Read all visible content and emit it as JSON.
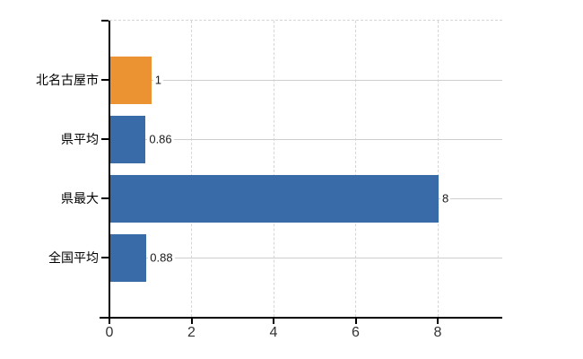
{
  "chart_data": {
    "type": "bar",
    "orientation": "horizontal",
    "title": "",
    "xlabel": "",
    "ylabel": "",
    "categories": [
      "北名古屋市",
      "県平均",
      "県最大",
      "全国平均"
    ],
    "values": [
      1,
      0.86,
      8,
      0.88
    ],
    "value_labels": [
      "1",
      "0.86",
      "8",
      "0.88"
    ],
    "x_ticks": [
      "0",
      "2",
      "4",
      "6",
      "8"
    ],
    "x_tick_values": [
      0,
      2,
      4,
      6,
      8
    ],
    "xlim": [
      0,
      9.57
    ],
    "grid": "on",
    "legend": "none",
    "highlight_index": 0,
    "bar_colors": [
      "#EB9232",
      "#3A6BA9",
      "#3A6BA9",
      "#3A6BA9"
    ],
    "colors": {
      "highlight_bar": "#EB9232",
      "default_bar": "#3A6BA9",
      "axis": "#000000",
      "h_gridline": "#CCCFCC",
      "v_gridline": "#D6D6D6",
      "tick_text": "#333333",
      "category_text": "#000000",
      "value_text": "#1A1A1A",
      "background": "#FFFFFF"
    }
  }
}
